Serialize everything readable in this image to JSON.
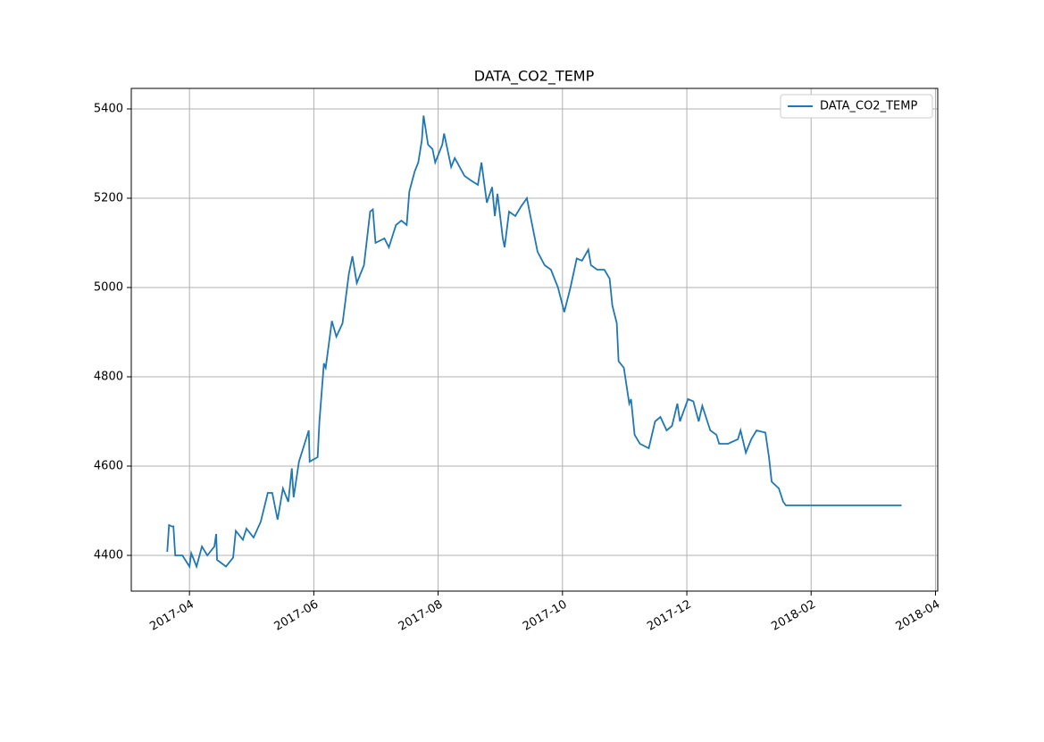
{
  "chart_data": {
    "type": "line",
    "title": "DATA_CO2_TEMP",
    "x": [
      2017.2202,
      2017.2226,
      2017.2261,
      2017.2285,
      2017.2309,
      2017.2405,
      2017.25,
      2017.2524,
      2017.2595,
      2017.2667,
      2017.2739,
      2017.2834,
      2017.2858,
      2017.287,
      2017.2989,
      2017.3085,
      2017.3121,
      2017.3216,
      2017.3264,
      2017.3359,
      2017.3455,
      2017.355,
      2017.361,
      2017.3681,
      2017.3753,
      2017.3825,
      2017.3872,
      2017.3896,
      2017.3968,
      2017.4099,
      2017.4111,
      2017.4218,
      2017.4242,
      2017.4302,
      2017.4326,
      2017.4409,
      2017.4469,
      2017.4552,
      2017.4636,
      2017.4684,
      2017.4743,
      2017.4839,
      2017.4922,
      2017.4958,
      2017.4994,
      2017.5113,
      2017.5173,
      2017.5268,
      2017.534,
      2017.5412,
      2017.5447,
      2017.5519,
      2017.5567,
      2017.5615,
      2017.5638,
      2017.5698,
      2017.5758,
      2017.5794,
      2017.5889,
      2017.5913,
      2017.6008,
      2017.6056,
      2017.6187,
      2017.6271,
      2017.6366,
      2017.6414,
      2017.6486,
      2017.6557,
      2017.6593,
      2017.6629,
      2017.67,
      2017.6724,
      2017.6784,
      2017.6868,
      2017.6939,
      2017.7023,
      2017.7094,
      2017.7166,
      2017.7261,
      2017.7345,
      2017.744,
      2017.7524,
      2017.7607,
      2017.7691,
      2017.7762,
      2017.7846,
      2017.7882,
      2017.7965,
      2017.8061,
      2017.8132,
      2017.8168,
      2017.8228,
      2017.8252,
      2017.8323,
      2017.8395,
      2017.8419,
      2017.8467,
      2017.8538,
      2017.8657,
      2017.8741,
      2017.8813,
      2017.8896,
      2017.8968,
      2017.904,
      2017.9075,
      2017.9183,
      2017.9254,
      2017.9326,
      2017.9374,
      2017.9481,
      2017.9564,
      2017.96,
      2017.9719,
      2017.9851,
      2017.9887,
      2017.9958,
      2018.003,
      2018.0101,
      2018.022,
      2018.0268,
      2018.0304,
      2018.04,
      2018.0459,
      2018.0495,
      2018.2046
    ],
    "series": [
      {
        "name": "DATA_CO2_TEMP",
        "color": "#1f77b4",
        "values": [
          4408,
          4468,
          4465,
          4465,
          4400,
          4400,
          4375,
          4405,
          4375,
          4420,
          4400,
          4420,
          4448,
          4390,
          4375,
          4395,
          4455,
          4435,
          4460,
          4440,
          4475,
          4540,
          4540,
          4480,
          4550,
          4520,
          4595,
          4530,
          4610,
          4680,
          4610,
          4620,
          4700,
          4830,
          4820,
          4925,
          4890,
          4920,
          5030,
          5070,
          5010,
          5050,
          5170,
          5175,
          5100,
          5110,
          5090,
          5140,
          5150,
          5140,
          5215,
          5260,
          5280,
          5330,
          5385,
          5320,
          5310,
          5280,
          5320,
          5345,
          5270,
          5290,
          5250,
          5240,
          5230,
          5280,
          5190,
          5225,
          5160,
          5210,
          5110,
          5090,
          5170,
          5160,
          5180,
          5200,
          5140,
          5080,
          5050,
          5040,
          5000,
          4945,
          5000,
          5065,
          5060,
          5085,
          5050,
          5040,
          5040,
          5020,
          4960,
          4920,
          4835,
          4820,
          4740,
          4750,
          4670,
          4650,
          4640,
          4700,
          4710,
          4680,
          4690,
          4740,
          4700,
          4750,
          4745,
          4700,
          4735,
          4680,
          4670,
          4650,
          4650,
          4660,
          4680,
          4630,
          4660,
          4680,
          4675,
          4620,
          4565,
          4550,
          4520,
          4512,
          4512
        ]
      }
    ],
    "xlim": [
      2017.172,
      2018.253
    ],
    "xticks": [
      {
        "value": 2017.25,
        "label": "2017-04"
      },
      {
        "value": 2017.4167,
        "label": "2017-06"
      },
      {
        "value": 2017.5833,
        "label": "2017-08"
      },
      {
        "value": 2017.75,
        "label": "2017-10"
      },
      {
        "value": 2017.9167,
        "label": "2017-12"
      },
      {
        "value": 2018.0833,
        "label": "2018-02"
      },
      {
        "value": 2018.25,
        "label": "2018-04"
      }
    ],
    "ylim": [
      4320,
      5446
    ],
    "yticks": [
      4400,
      4600,
      4800,
      5000,
      5200,
      5400
    ],
    "grid": true,
    "legend": "upper right"
  }
}
